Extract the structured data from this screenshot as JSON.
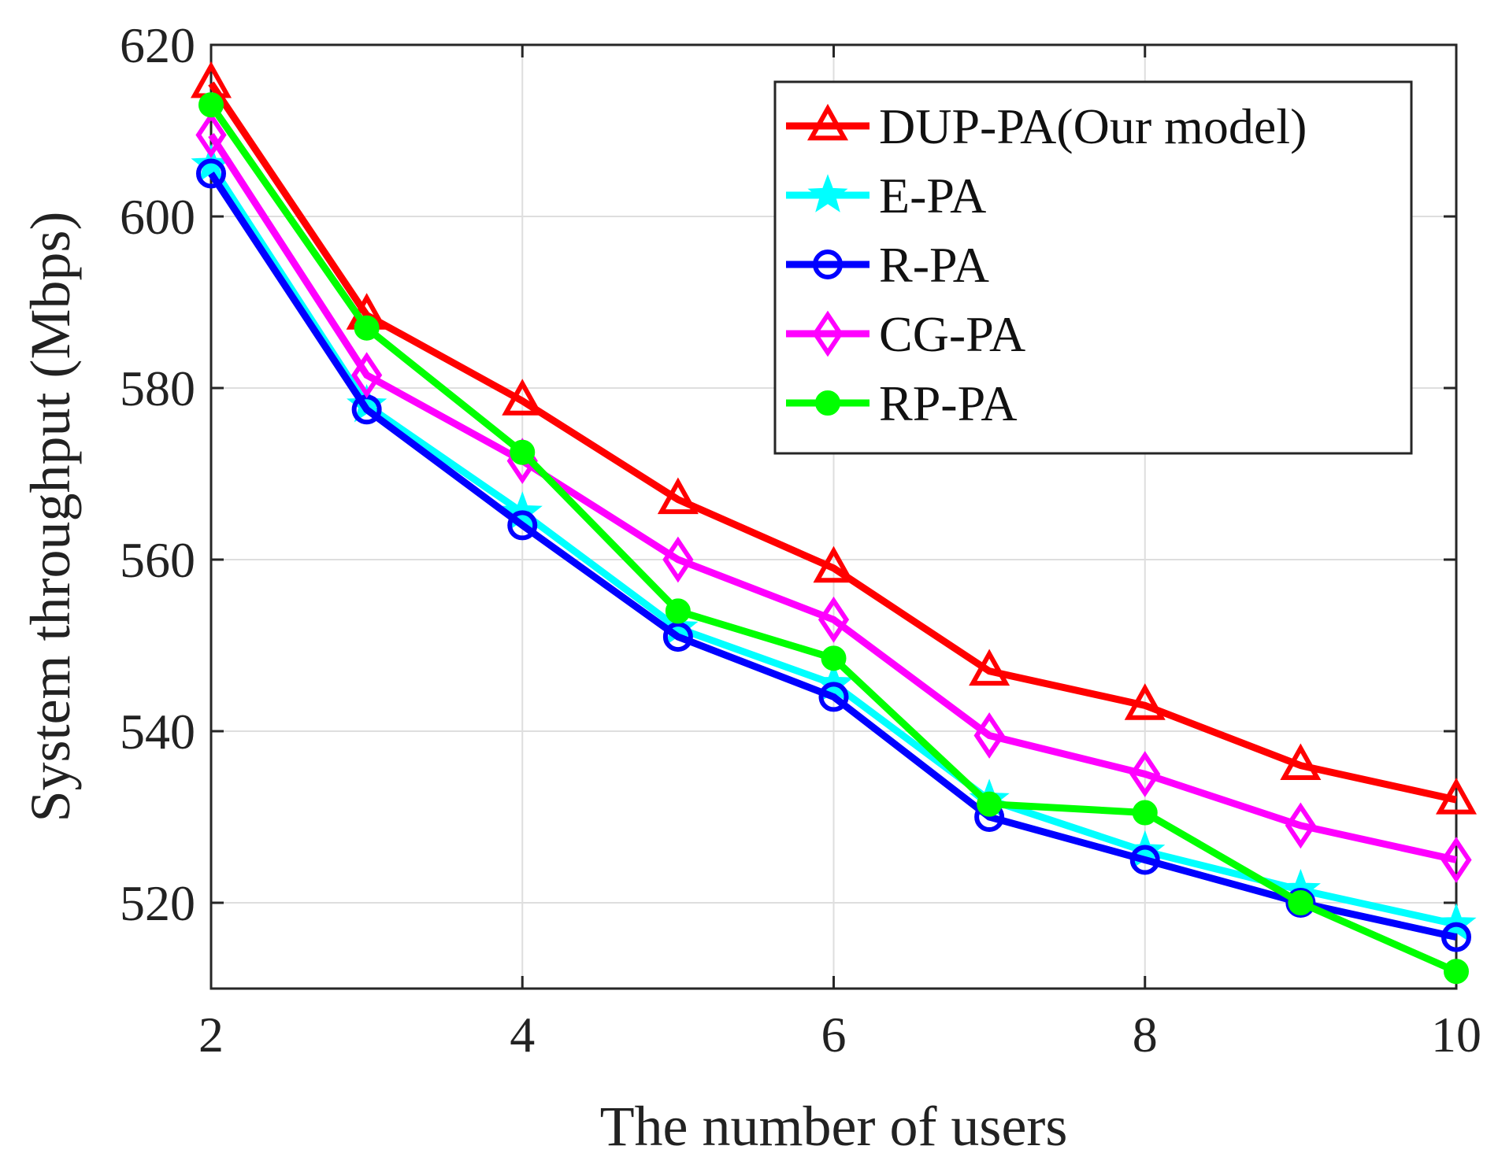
{
  "chart_data": {
    "type": "line",
    "title": "",
    "xlabel": "The number of users",
    "ylabel": "System throughput (Mbps)",
    "xlim": [
      2,
      10
    ],
    "ylim": [
      510,
      620
    ],
    "x_ticks": [
      2,
      4,
      6,
      8,
      10
    ],
    "y_ticks": [
      520,
      540,
      560,
      580,
      600,
      620
    ],
    "grid": true,
    "legend_position": "top-right",
    "x": [
      2,
      3,
      4,
      5,
      6,
      7,
      8,
      9,
      10
    ],
    "series": [
      {
        "name": "DUP-PA(Our model)",
        "color": "#ff0000",
        "marker": "triangle",
        "values": [
          615.5,
          588.5,
          578.5,
          567.0,
          559.0,
          547.0,
          543.0,
          536.0,
          532.0
        ]
      },
      {
        "name": "E-PA",
        "color": "#00ffff",
        "marker": "star",
        "values": [
          606.0,
          578.0,
          565.5,
          552.0,
          545.5,
          532.0,
          526.0,
          521.5,
          517.5
        ]
      },
      {
        "name": "R-PA",
        "color": "#0000ff",
        "marker": "circle",
        "values": [
          605.0,
          577.5,
          564.0,
          551.0,
          544.0,
          530.0,
          525.0,
          520.0,
          516.0
        ]
      },
      {
        "name": "CG-PA",
        "color": "#ff00ff",
        "marker": "diamond",
        "values": [
          609.5,
          581.5,
          571.5,
          560.0,
          553.0,
          539.5,
          535.0,
          529.0,
          525.0
        ]
      },
      {
        "name": "RP-PA",
        "color": "#00ff00",
        "marker": "dot",
        "values": [
          613.0,
          587.0,
          572.5,
          554.0,
          548.5,
          531.5,
          530.5,
          520.0,
          512.0
        ]
      }
    ]
  }
}
